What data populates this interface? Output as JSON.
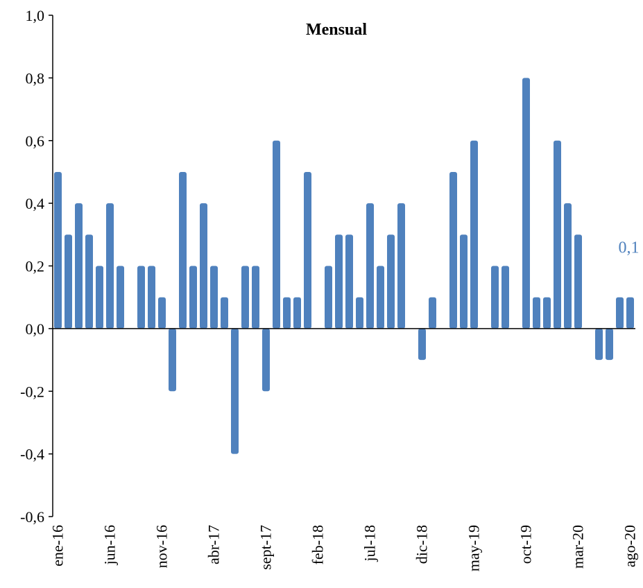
{
  "chart_data": {
    "type": "bar",
    "title": "Mensual",
    "categories": [
      "ene-16",
      null,
      null,
      null,
      null,
      "jun-16",
      null,
      null,
      null,
      null,
      "nov-16",
      null,
      null,
      null,
      null,
      "abr-17",
      null,
      null,
      null,
      null,
      "sept-17",
      null,
      null,
      null,
      null,
      "feb-18",
      null,
      null,
      null,
      null,
      "jul-18",
      null,
      null,
      null,
      null,
      "dic-18",
      null,
      null,
      null,
      null,
      "may-19",
      null,
      null,
      null,
      null,
      "oct-19",
      null,
      null,
      null,
      null,
      "mar-20",
      null,
      null,
      null,
      null,
      "ago-20"
    ],
    "values": [
      0.5,
      0.3,
      0.4,
      0.3,
      0.2,
      0.4,
      0.2,
      0.0,
      0.2,
      0.2,
      0.1,
      -0.2,
      0.5,
      0.2,
      0.4,
      0.2,
      0.1,
      -0.4,
      0.2,
      0.2,
      -0.2,
      0.6,
      0.1,
      0.1,
      0.5,
      0.0,
      0.2,
      0.3,
      0.3,
      0.1,
      0.4,
      0.2,
      0.3,
      0.4,
      0.0,
      -0.1,
      0.1,
      0.0,
      0.5,
      0.3,
      0.6,
      0.0,
      0.2,
      0.2,
      0.0,
      0.8,
      0.1,
      0.1,
      0.6,
      0.4,
      0.3,
      0.0,
      -0.1,
      -0.1,
      0.1,
      0.1
    ],
    "value_labels": [
      null,
      null,
      null,
      null,
      null,
      null,
      null,
      null,
      null,
      null,
      null,
      null,
      null,
      null,
      null,
      null,
      null,
      null,
      null,
      null,
      null,
      null,
      null,
      null,
      null,
      null,
      null,
      null,
      null,
      null,
      null,
      null,
      null,
      null,
      null,
      null,
      null,
      null,
      null,
      null,
      null,
      null,
      null,
      null,
      null,
      null,
      null,
      null,
      null,
      null,
      null,
      null,
      null,
      null,
      null,
      "0,1"
    ],
    "color": "#4f81bd",
    "ylim": [
      -0.6,
      1.0
    ],
    "yticks": [
      {
        "value": -0.6,
        "label": "-0,6"
      },
      {
        "value": -0.4,
        "label": "-0,4"
      },
      {
        "value": -0.2,
        "label": "-0,2"
      },
      {
        "value": 0,
        "label": "0,0"
      },
      {
        "value": 0.2,
        "label": "0,2"
      },
      {
        "value": 0.4,
        "label": "0,4"
      },
      {
        "value": 0.6,
        "label": "0,6"
      },
      {
        "value": 0.8,
        "label": "0,8"
      },
      {
        "value": 1.0,
        "label": "1,0"
      }
    ]
  }
}
